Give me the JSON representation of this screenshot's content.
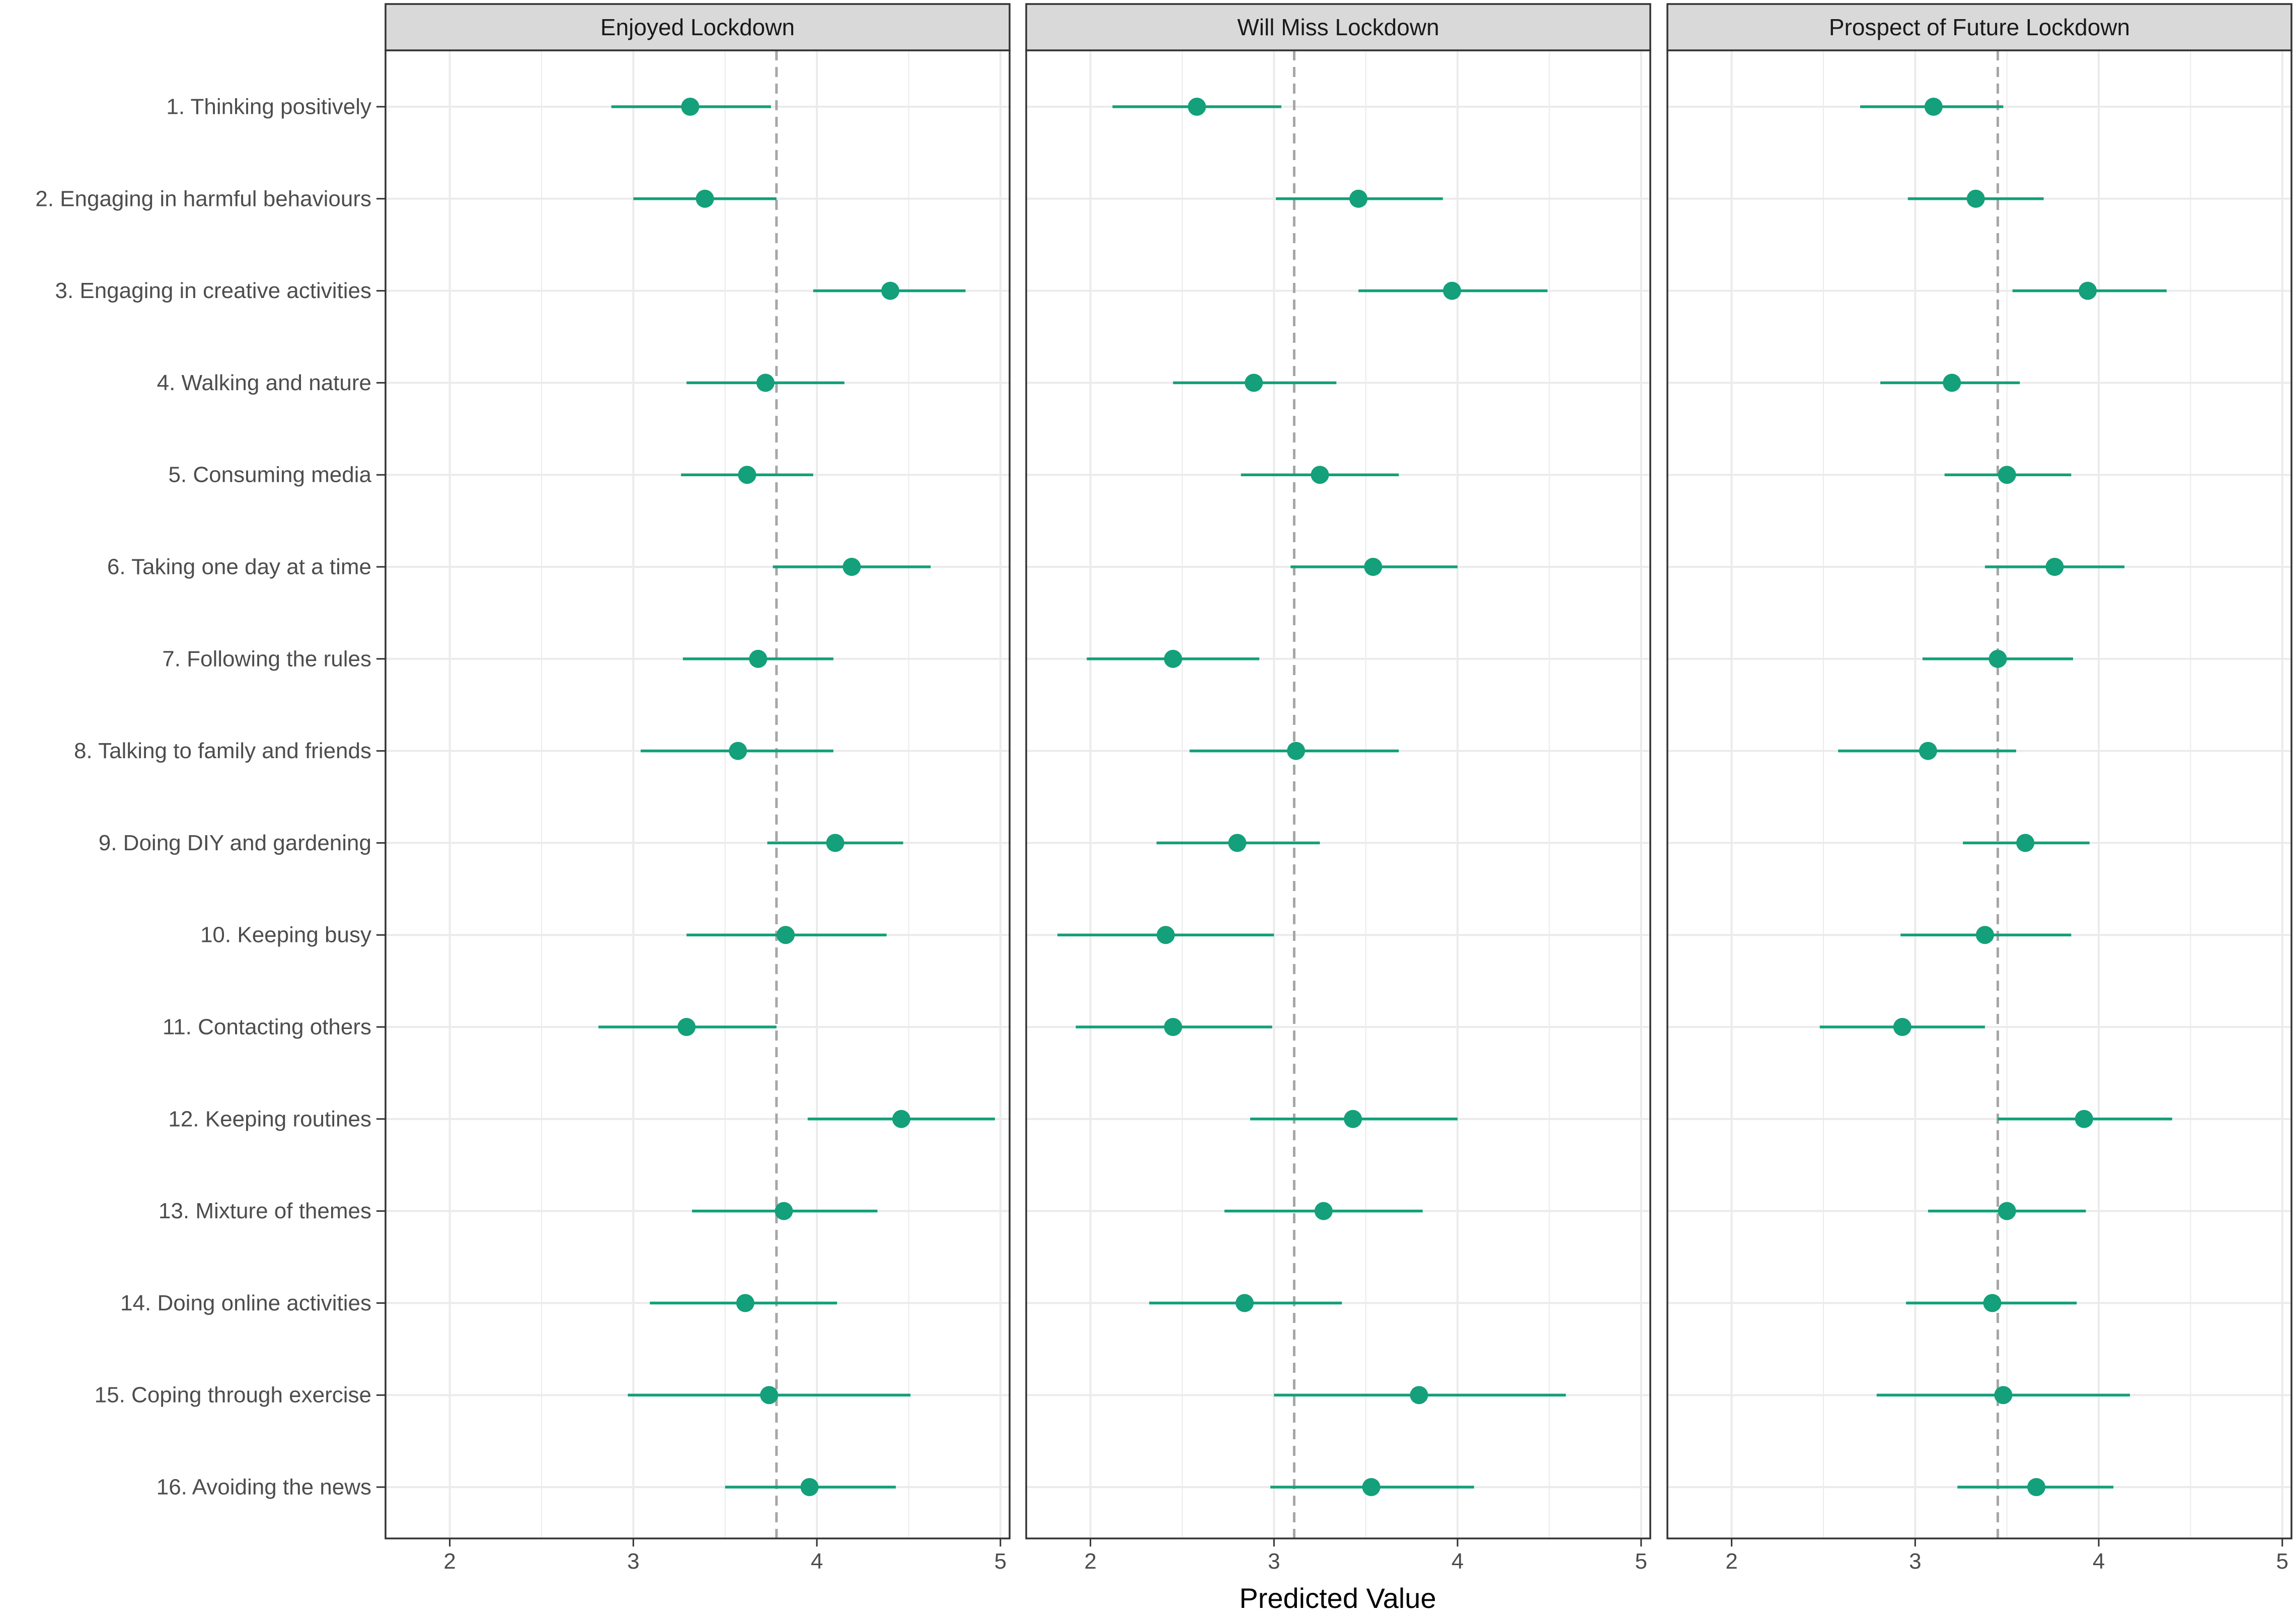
{
  "chart_data": {
    "type": "scatter",
    "xlabel": "Predicted Value",
    "ylabel": "",
    "categories": [
      "1. Thinking positively",
      "2. Engaging in harmful behaviours",
      "3. Engaging in creative activities",
      "4. Walking and nature",
      "5. Consuming media",
      "6. Taking one day at a time",
      "7. Following the rules",
      "8. Talking to family and friends",
      "9. Doing DIY and gardening",
      "10. Keeping busy",
      "11. Contacting others",
      "12. Keeping routines",
      "13. Mixture of themes",
      "14. Doing online activities",
      "15. Coping through exercise",
      "16. Avoiding the news"
    ],
    "xlim": [
      1.65,
      5.05
    ],
    "xticks": [
      2,
      3,
      4,
      5
    ],
    "grid": true,
    "colors": {
      "point": "#13A07A",
      "strip": "#D9D9D9",
      "grid": "#EBEBEB",
      "reference": "#A6A6A6",
      "panel_border": "#333333",
      "text": "#4D4D4D"
    },
    "panels": [
      {
        "title": "Enjoyed Lockdown",
        "reference_line": 3.78,
        "estimate": [
          3.31,
          3.39,
          4.4,
          3.72,
          3.62,
          4.19,
          3.68,
          3.57,
          4.1,
          3.83,
          3.29,
          4.46,
          3.82,
          3.61,
          3.74,
          3.96
        ],
        "lower": [
          2.88,
          3.0,
          3.98,
          3.29,
          3.26,
          3.76,
          3.27,
          3.04,
          3.73,
          3.29,
          2.81,
          3.95,
          3.32,
          3.09,
          2.97,
          3.5
        ],
        "upper": [
          3.75,
          3.78,
          4.81,
          4.15,
          3.98,
          4.62,
          4.09,
          4.09,
          4.47,
          4.38,
          3.78,
          4.97,
          4.33,
          4.11,
          4.51,
          4.43
        ]
      },
      {
        "title": "Will Miss Lockdown",
        "reference_line": 3.11,
        "estimate": [
          2.58,
          3.46,
          3.97,
          2.89,
          3.25,
          3.54,
          2.45,
          3.12,
          2.8,
          2.41,
          2.45,
          3.43,
          3.27,
          2.84,
          3.79,
          3.53
        ],
        "lower": [
          2.12,
          3.01,
          3.46,
          2.45,
          2.82,
          3.09,
          1.98,
          2.54,
          2.36,
          1.82,
          1.92,
          2.87,
          2.73,
          2.32,
          3.0,
          2.98
        ],
        "upper": [
          3.04,
          3.92,
          4.49,
          3.34,
          3.68,
          4.0,
          2.92,
          3.68,
          3.25,
          3.0,
          2.99,
          4.0,
          3.81,
          3.37,
          4.59,
          4.09
        ]
      },
      {
        "title": "Prospect of Future Lockdown",
        "reference_line": 3.45,
        "estimate": [
          3.1,
          3.33,
          3.94,
          3.2,
          3.5,
          3.76,
          3.45,
          3.07,
          3.6,
          3.38,
          2.93,
          3.92,
          3.5,
          3.42,
          3.48,
          3.66
        ],
        "lower": [
          2.7,
          2.96,
          3.53,
          2.81,
          3.16,
          3.38,
          3.04,
          2.58,
          3.26,
          2.92,
          2.48,
          3.45,
          3.07,
          2.95,
          2.79,
          3.23
        ],
        "upper": [
          3.48,
          3.7,
          4.37,
          3.57,
          3.85,
          4.14,
          3.86,
          3.55,
          3.95,
          3.85,
          3.38,
          4.4,
          3.93,
          3.88,
          4.17,
          4.08
        ]
      }
    ]
  }
}
